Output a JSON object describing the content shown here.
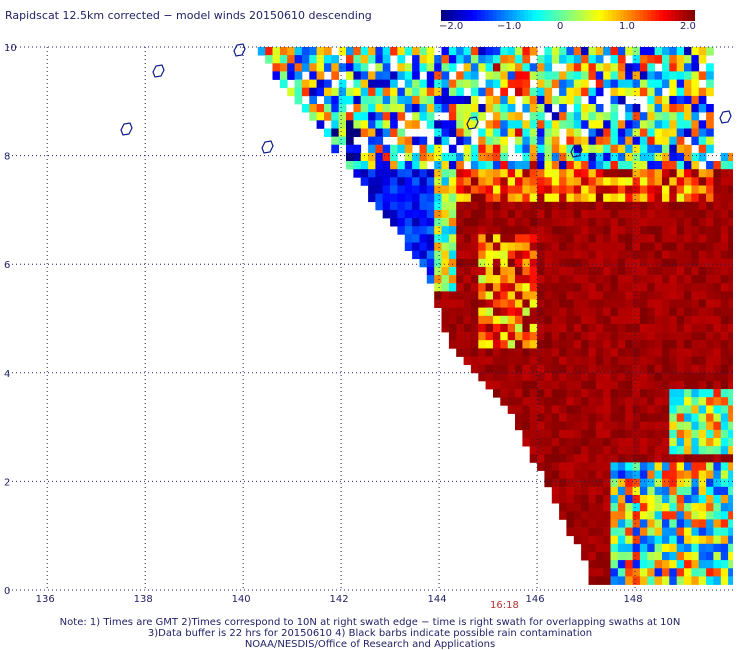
{
  "title": "Rapidscat 12.5km corrected − model winds 20150610 descending",
  "colorbar": {
    "ticks": [
      "−2.0",
      "−1.0",
      "0",
      "1.0",
      "2.0"
    ],
    "range": [
      -2.0,
      2.0
    ],
    "colors": [
      "#00007f",
      "#0000ff",
      "#0080ff",
      "#00ffff",
      "#80ff80",
      "#ffff00",
      "#ff8000",
      "#ff0000",
      "#7f0000"
    ]
  },
  "axes": {
    "lon_ticks": [
      "136",
      "138",
      "140",
      "142",
      "144",
      "146",
      "148"
    ],
    "lat_ticks": [
      "0",
      "2",
      "4",
      "6",
      "8",
      "10"
    ],
    "lon_values": [
      136,
      138,
      140,
      142,
      144,
      146,
      148
    ],
    "lat_values": [
      0,
      2,
      4,
      6,
      8,
      10
    ],
    "lon_range": [
      135.2,
      150
    ],
    "lat_range": [
      0,
      10
    ],
    "grid": "dotted"
  },
  "swath": {
    "edge": [
      [
        140.3,
        9.9
      ],
      [
        141.8,
        8.2
      ],
      [
        143.8,
        5.8
      ],
      [
        144.2,
        4.5
      ],
      [
        145.3,
        3.5
      ],
      [
        147,
        0.5
      ],
      [
        147.1,
        0
      ]
    ],
    "cell_deg": 0.15,
    "description_regions": "cool blue west, red east"
  },
  "time_label": "16:18",
  "notes": [
    "Note: 1) Times are GMT 2)Times correspond to 10N at right swath edge − time is right swath for overlapping swaths at 10N",
    "3)Data buffer is 22 hrs for 20150610 4) Black barbs indicate possible rain contamination",
    "NOAA/NESDIS/Office of Research and Applications"
  ]
}
